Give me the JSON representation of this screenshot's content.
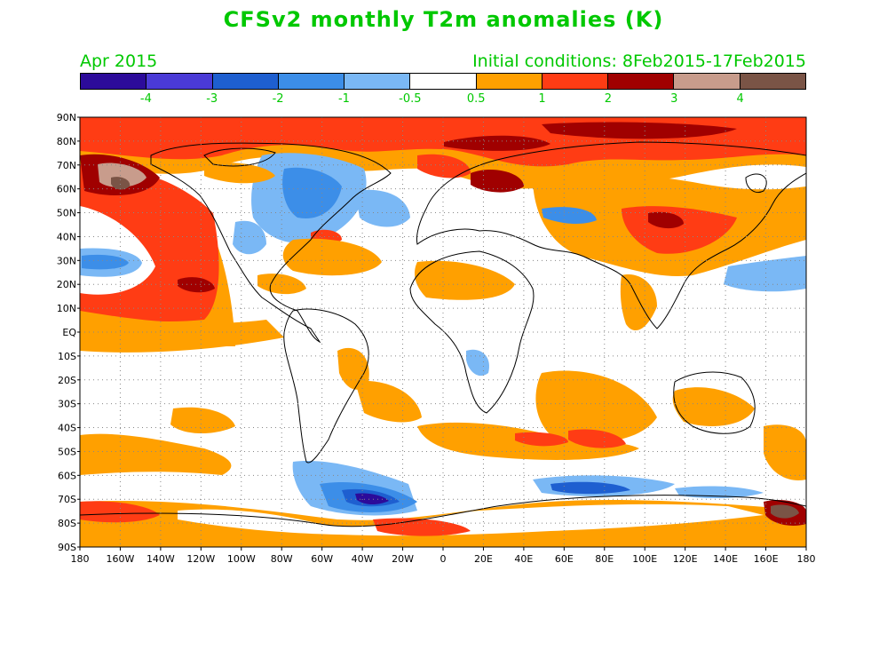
{
  "title": "CFSv2 monthly T2m anomalies (K)",
  "valid_month": "Apr 2015",
  "initial_conditions": "Initial conditions: 8Feb2015-17Feb2015",
  "colorbar": {
    "colors": [
      "#2c0b9a",
      "#4a3ad6",
      "#1e5fd0",
      "#3c8ee8",
      "#7ab8f5",
      "#ffffff",
      "#ffa000",
      "#ff3c14",
      "#a00000",
      "#c89c8c",
      "#7a5446"
    ],
    "labels": [
      "-4",
      "-3",
      "-2",
      "-1",
      "-0.5",
      "0.5",
      "1",
      "2",
      "3",
      "4"
    ]
  },
  "lat_labels": [
    "90N",
    "80N",
    "70N",
    "60N",
    "50N",
    "40N",
    "30N",
    "20N",
    "10N",
    "EQ",
    "10S",
    "20S",
    "30S",
    "40S",
    "50S",
    "60S",
    "70S",
    "80S",
    "90S"
  ],
  "lon_labels": [
    "180",
    "160W",
    "140W",
    "120W",
    "100W",
    "80W",
    "60W",
    "40W",
    "20W",
    "0",
    "20E",
    "40E",
    "60E",
    "80E",
    "100E",
    "120E",
    "140E",
    "160E",
    "180"
  ]
}
